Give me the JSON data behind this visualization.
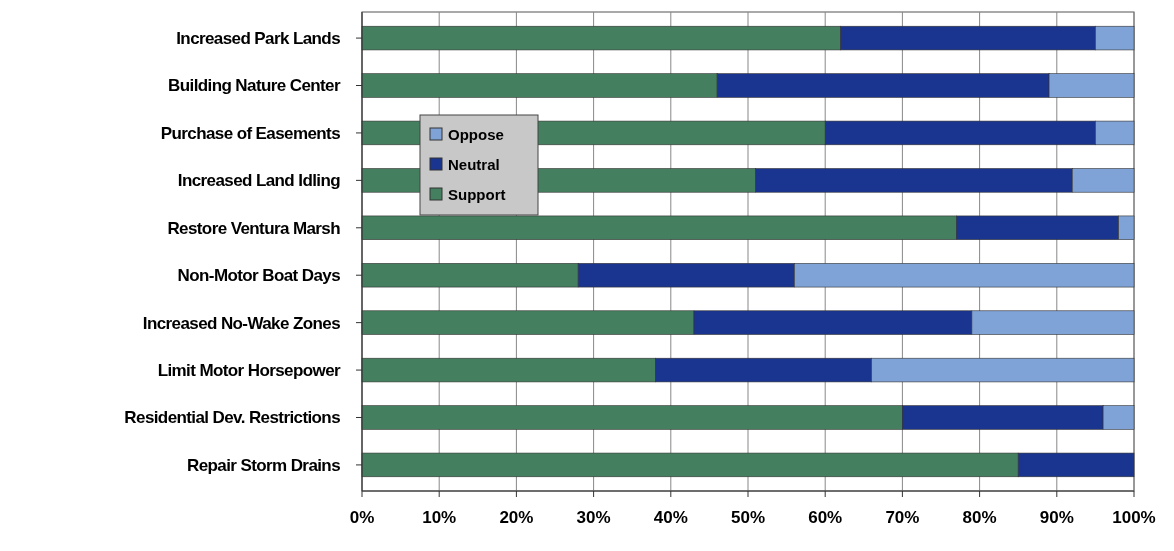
{
  "chart_data": {
    "type": "bar",
    "orientation": "horizontal",
    "stacked": true,
    "categories": [
      "Increased Park Lands",
      "Building Nature Center",
      "Purchase of Easements",
      "Increased Land Idling",
      "Restore Ventura Marsh",
      "Non-Motor Boat Days",
      "Increased No-Wake Zones",
      "Limit Motor Horsepower",
      "Residential Dev. Restrictions",
      "Repair Storm Drains"
    ],
    "series": [
      {
        "name": "Support",
        "color": "#44805f",
        "values": [
          62,
          46,
          60,
          51,
          77,
          28,
          43,
          38,
          70,
          85
        ]
      },
      {
        "name": "Neutral",
        "color": "#1a3590",
        "values": [
          33,
          43,
          35,
          41,
          21,
          28,
          36,
          28,
          26,
          15
        ]
      },
      {
        "name": "Oppose",
        "color": "#7fa3d6",
        "values": [
          5,
          11,
          5,
          8,
          2,
          44,
          21,
          34,
          4,
          0
        ]
      }
    ],
    "xlim": [
      0,
      100
    ],
    "xticks": [
      {
        "value": 0,
        "label": "0%"
      },
      {
        "value": 10,
        "label": "10%"
      },
      {
        "value": 20,
        "label": "20%"
      },
      {
        "value": 30,
        "label": "30%"
      },
      {
        "value": 40,
        "label": "40%"
      },
      {
        "value": 50,
        "label": "50%"
      },
      {
        "value": 60,
        "label": "60%"
      },
      {
        "value": 70,
        "label": "70%"
      },
      {
        "value": 80,
        "label": "80%"
      },
      {
        "value": 90,
        "label": "90%"
      },
      {
        "value": 100,
        "label": "100%"
      }
    ],
    "grid": "x",
    "legend": "left"
  }
}
